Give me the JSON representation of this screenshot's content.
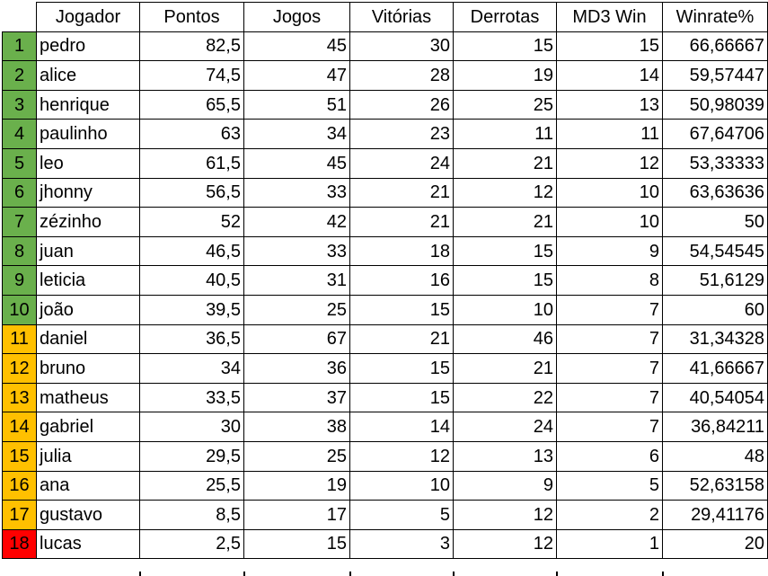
{
  "colors": {
    "top10": "#6ab04c",
    "mid": "#ffc000",
    "last": "#ff0000"
  },
  "headers": [
    "Jogador",
    "Pontos",
    "Jogos",
    "Vitórias",
    "Derrotas",
    "MD3 Win",
    "Winrate%"
  ],
  "rows": [
    {
      "rank": "1",
      "tier": "top10",
      "name": "pedro",
      "pontos": "82,5",
      "jogos": "45",
      "vitorias": "30",
      "derrotas": "15",
      "md3": "15",
      "winrate": "66,66667"
    },
    {
      "rank": "2",
      "tier": "top10",
      "name": "alice",
      "pontos": "74,5",
      "jogos": "47",
      "vitorias": "28",
      "derrotas": "19",
      "md3": "14",
      "winrate": "59,57447"
    },
    {
      "rank": "3",
      "tier": "top10",
      "name": "henrique",
      "pontos": "65,5",
      "jogos": "51",
      "vitorias": "26",
      "derrotas": "25",
      "md3": "13",
      "winrate": "50,98039"
    },
    {
      "rank": "4",
      "tier": "top10",
      "name": "paulinho",
      "pontos": "63",
      "jogos": "34",
      "vitorias": "23",
      "derrotas": "11",
      "md3": "11",
      "winrate": "67,64706"
    },
    {
      "rank": "5",
      "tier": "top10",
      "name": "leo",
      "pontos": "61,5",
      "jogos": "45",
      "vitorias": "24",
      "derrotas": "21",
      "md3": "12",
      "winrate": "53,33333"
    },
    {
      "rank": "6",
      "tier": "top10",
      "name": "jhonny",
      "pontos": "56,5",
      "jogos": "33",
      "vitorias": "21",
      "derrotas": "12",
      "md3": "10",
      "winrate": "63,63636"
    },
    {
      "rank": "7",
      "tier": "top10",
      "name": "zézinho",
      "pontos": "52",
      "jogos": "42",
      "vitorias": "21",
      "derrotas": "21",
      "md3": "10",
      "winrate": "50"
    },
    {
      "rank": "8",
      "tier": "top10",
      "name": "juan",
      "pontos": "46,5",
      "jogos": "33",
      "vitorias": "18",
      "derrotas": "15",
      "md3": "9",
      "winrate": "54,54545"
    },
    {
      "rank": "9",
      "tier": "top10",
      "name": "leticia",
      "pontos": "40,5",
      "jogos": "31",
      "vitorias": "16",
      "derrotas": "15",
      "md3": "8",
      "winrate": "51,6129"
    },
    {
      "rank": "10",
      "tier": "top10",
      "name": "joão",
      "pontos": "39,5",
      "jogos": "25",
      "vitorias": "15",
      "derrotas": "10",
      "md3": "7",
      "winrate": "60"
    },
    {
      "rank": "11",
      "tier": "mid",
      "name": "daniel",
      "pontos": "36,5",
      "jogos": "67",
      "vitorias": "21",
      "derrotas": "46",
      "md3": "7",
      "winrate": "31,34328"
    },
    {
      "rank": "12",
      "tier": "mid",
      "name": "bruno",
      "pontos": "34",
      "jogos": "36",
      "vitorias": "15",
      "derrotas": "21",
      "md3": "7",
      "winrate": "41,66667"
    },
    {
      "rank": "13",
      "tier": "mid",
      "name": "matheus",
      "pontos": "33,5",
      "jogos": "37",
      "vitorias": "15",
      "derrotas": "22",
      "md3": "7",
      "winrate": "40,54054"
    },
    {
      "rank": "14",
      "tier": "mid",
      "name": "gabriel",
      "pontos": "30",
      "jogos": "38",
      "vitorias": "14",
      "derrotas": "24",
      "md3": "7",
      "winrate": "36,84211"
    },
    {
      "rank": "15",
      "tier": "mid",
      "name": "julia",
      "pontos": "29,5",
      "jogos": "25",
      "vitorias": "12",
      "derrotas": "13",
      "md3": "6",
      "winrate": "48"
    },
    {
      "rank": "16",
      "tier": "mid",
      "name": "ana",
      "pontos": "25,5",
      "jogos": "19",
      "vitorias": "10",
      "derrotas": "9",
      "md3": "5",
      "winrate": "52,63158"
    },
    {
      "rank": "17",
      "tier": "mid",
      "name": "gustavo",
      "pontos": "8,5",
      "jogos": "17",
      "vitorias": "5",
      "derrotas": "12",
      "md3": "2",
      "winrate": "29,41176"
    },
    {
      "rank": "18",
      "tier": "last",
      "name": "lucas",
      "pontos": "2,5",
      "jogos": "15",
      "vitorias": "3",
      "derrotas": "12",
      "md3": "1",
      "winrate": "20"
    }
  ]
}
